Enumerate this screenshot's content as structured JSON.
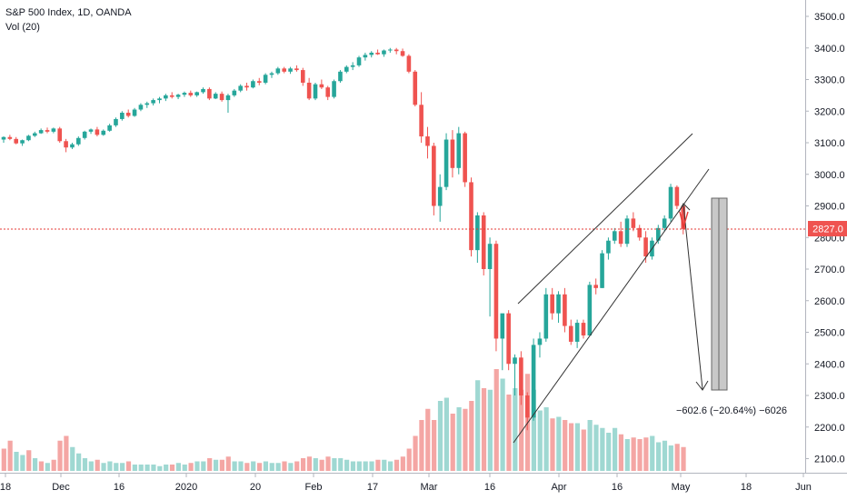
{
  "legend": {
    "title": "S&P 500 Index, 1D, OANDA",
    "volume": "Vol (20)"
  },
  "colors": {
    "up": "#26a69a",
    "down": "#ef5350",
    "vol_up": "#9fd8d2",
    "vol_down": "#f4a6a4",
    "price_line": "#e53935",
    "drawing": "#333333",
    "range_fill": "#c8c8c8"
  },
  "chart_data": {
    "type": "candlestick",
    "y_axis": {
      "min": 2100,
      "max": 3500,
      "ticks": [
        "3500.0",
        "3400.0",
        "3300.0",
        "3200.0",
        "3100.0",
        "3000.0",
        "2900.0",
        "2800.0",
        "2700.0",
        "2600.0",
        "2500.0",
        "2400.0",
        "2300.0",
        "2200.0",
        "2100.0"
      ]
    },
    "x_axis": {
      "ticks": [
        "18",
        "Dec",
        "16",
        "2020",
        "20",
        "Feb",
        "17",
        "Mar",
        "16",
        "Apr",
        "16",
        "May",
        "18",
        "Jun"
      ]
    },
    "last_price": "2827.0",
    "measure_label": "−602.6 (−20.64%) −6026",
    "candles": [
      [
        3110,
        3120,
        3100,
        3118
      ],
      [
        3118,
        3125,
        3108,
        3112
      ],
      [
        3112,
        3118,
        3095,
        3098
      ],
      [
        3098,
        3110,
        3090,
        3108
      ],
      [
        3108,
        3125,
        3105,
        3122
      ],
      [
        3122,
        3135,
        3118,
        3130
      ],
      [
        3130,
        3145,
        3128,
        3140
      ],
      [
        3140,
        3148,
        3130,
        3135
      ],
      [
        3135,
        3148,
        3130,
        3145
      ],
      [
        3145,
        3150,
        3100,
        3105
      ],
      [
        3105,
        3112,
        3070,
        3085
      ],
      [
        3085,
        3100,
        3080,
        3095
      ],
      [
        3095,
        3120,
        3090,
        3115
      ],
      [
        3115,
        3138,
        3110,
        3135
      ],
      [
        3135,
        3145,
        3128,
        3142
      ],
      [
        3142,
        3150,
        3120,
        3125
      ],
      [
        3125,
        3142,
        3122,
        3138
      ],
      [
        3138,
        3160,
        3135,
        3155
      ],
      [
        3155,
        3180,
        3150,
        3175
      ],
      [
        3175,
        3200,
        3170,
        3195
      ],
      [
        3195,
        3205,
        3180,
        3185
      ],
      [
        3185,
        3210,
        3182,
        3205
      ],
      [
        3205,
        3225,
        3200,
        3220
      ],
      [
        3220,
        3230,
        3210,
        3225
      ],
      [
        3225,
        3240,
        3218,
        3235
      ],
      [
        3235,
        3245,
        3225,
        3240
      ],
      [
        3240,
        3255,
        3232,
        3250
      ],
      [
        3250,
        3260,
        3240,
        3245
      ],
      [
        3245,
        3255,
        3238,
        3252
      ],
      [
        3252,
        3262,
        3245,
        3258
      ],
      [
        3258,
        3265,
        3245,
        3250
      ],
      [
        3250,
        3262,
        3245,
        3260
      ],
      [
        3260,
        3275,
        3255,
        3270
      ],
      [
        3270,
        3275,
        3235,
        3240
      ],
      [
        3240,
        3260,
        3238,
        3255
      ],
      [
        3255,
        3262,
        3230,
        3235
      ],
      [
        3235,
        3255,
        3195,
        3250
      ],
      [
        3250,
        3270,
        3245,
        3265
      ],
      [
        3265,
        3285,
        3260,
        3280
      ],
      [
        3280,
        3290,
        3265,
        3275
      ],
      [
        3275,
        3300,
        3272,
        3295
      ],
      [
        3295,
        3305,
        3282,
        3290
      ],
      [
        3290,
        3320,
        3285,
        3315
      ],
      [
        3315,
        3325,
        3305,
        3320
      ],
      [
        3320,
        3340,
        3315,
        3335
      ],
      [
        3335,
        3340,
        3320,
        3325
      ],
      [
        3325,
        3340,
        3318,
        3335
      ],
      [
        3335,
        3345,
        3325,
        3330
      ],
      [
        3330,
        3337,
        3280,
        3290
      ],
      [
        3290,
        3305,
        3235,
        3240
      ],
      [
        3240,
        3290,
        3235,
        3285
      ],
      [
        3285,
        3300,
        3270,
        3275
      ],
      [
        3275,
        3280,
        3235,
        3245
      ],
      [
        3245,
        3300,
        3240,
        3295
      ],
      [
        3295,
        3330,
        3290,
        3325
      ],
      [
        3325,
        3345,
        3320,
        3340
      ],
      [
        3340,
        3355,
        3330,
        3345
      ],
      [
        3345,
        3375,
        3340,
        3370
      ],
      [
        3370,
        3385,
        3360,
        3378
      ],
      [
        3378,
        3390,
        3370,
        3385
      ],
      [
        3385,
        3395,
        3378,
        3380
      ],
      [
        3380,
        3395,
        3372,
        3392
      ],
      [
        3392,
        3400,
        3385,
        3395
      ],
      [
        3395,
        3400,
        3380,
        3390
      ],
      [
        3390,
        3398,
        3372,
        3375
      ],
      [
        3375,
        3380,
        3320,
        3325
      ],
      [
        3325,
        3330,
        3215,
        3220
      ],
      [
        3220,
        3260,
        3100,
        3120
      ],
      [
        3120,
        3150,
        3050,
        3090
      ],
      [
        3090,
        3100,
        2870,
        2900
      ],
      [
        2900,
        3000,
        2850,
        2960
      ],
      [
        2960,
        3130,
        2950,
        3110
      ],
      [
        3110,
        3140,
        2990,
        3020
      ],
      [
        3020,
        3150,
        3000,
        3130
      ],
      [
        3130,
        3135,
        2960,
        2975
      ],
      [
        2975,
        2990,
        2740,
        2760
      ],
      [
        2760,
        2880,
        2720,
        2870
      ],
      [
        2870,
        2880,
        2680,
        2700
      ],
      [
        2700,
        2800,
        2550,
        2780
      ],
      [
        2780,
        2790,
        2440,
        2480
      ],
      [
        2480,
        2550,
        2380,
        2560
      ],
      [
        2560,
        2570,
        2380,
        2400
      ],
      [
        2400,
        2430,
        2300,
        2420
      ],
      [
        2420,
        2440,
        2270,
        2300
      ],
      [
        2300,
        2310,
        2190,
        2230
      ],
      [
        2230,
        2480,
        2220,
        2460
      ],
      [
        2460,
        2500,
        2420,
        2480
      ],
      [
        2480,
        2640,
        2470,
        2620
      ],
      [
        2620,
        2640,
        2540,
        2560
      ],
      [
        2560,
        2630,
        2530,
        2620
      ],
      [
        2620,
        2640,
        2500,
        2520
      ],
      [
        2520,
        2540,
        2460,
        2470
      ],
      [
        2470,
        2540,
        2450,
        2530
      ],
      [
        2530,
        2540,
        2480,
        2490
      ],
      [
        2490,
        2660,
        2490,
        2650
      ],
      [
        2650,
        2670,
        2620,
        2640
      ],
      [
        2640,
        2760,
        2640,
        2750
      ],
      [
        2750,
        2800,
        2730,
        2790
      ],
      [
        2790,
        2830,
        2780,
        2820
      ],
      [
        2820,
        2850,
        2770,
        2780
      ],
      [
        2780,
        2870,
        2770,
        2860
      ],
      [
        2860,
        2880,
        2820,
        2830
      ],
      [
        2830,
        2840,
        2790,
        2800
      ],
      [
        2800,
        2820,
        2720,
        2740
      ],
      [
        2740,
        2800,
        2730,
        2790
      ],
      [
        2790,
        2840,
        2780,
        2830
      ],
      [
        2830,
        2870,
        2820,
        2860
      ],
      [
        2860,
        2970,
        2850,
        2960
      ],
      [
        2960,
        2965,
        2890,
        2900
      ],
      [
        2900,
        2905,
        2810,
        2827
      ]
    ],
    "volumes": [
      [
        1.4,
        0
      ],
      [
        1.9,
        0
      ],
      [
        1.2,
        1
      ],
      [
        1.0,
        1
      ],
      [
        1.3,
        0
      ],
      [
        0.8,
        1
      ],
      [
        0.6,
        0
      ],
      [
        0.5,
        1
      ],
      [
        0.7,
        0
      ],
      [
        1.9,
        0
      ],
      [
        2.2,
        0
      ],
      [
        1.5,
        1
      ],
      [
        1.1,
        1
      ],
      [
        0.8,
        1
      ],
      [
        0.6,
        1
      ],
      [
        0.7,
        0
      ],
      [
        0.5,
        1
      ],
      [
        0.6,
        1
      ],
      [
        0.5,
        1
      ],
      [
        0.5,
        1
      ],
      [
        0.6,
        0
      ],
      [
        0.4,
        1
      ],
      [
        0.4,
        1
      ],
      [
        0.4,
        1
      ],
      [
        0.4,
        1
      ],
      [
        0.3,
        1
      ],
      [
        0.4,
        1
      ],
      [
        0.4,
        0
      ],
      [
        0.5,
        1
      ],
      [
        0.4,
        1
      ],
      [
        0.5,
        0
      ],
      [
        0.6,
        1
      ],
      [
        0.6,
        1
      ],
      [
        0.8,
        0
      ],
      [
        0.7,
        1
      ],
      [
        0.7,
        0
      ],
      [
        0.9,
        0
      ],
      [
        0.6,
        1
      ],
      [
        0.6,
        1
      ],
      [
        0.5,
        0
      ],
      [
        0.6,
        1
      ],
      [
        0.5,
        0
      ],
      [
        0.6,
        1
      ],
      [
        0.5,
        1
      ],
      [
        0.5,
        1
      ],
      [
        0.6,
        0
      ],
      [
        0.5,
        1
      ],
      [
        0.6,
        0
      ],
      [
        0.8,
        0
      ],
      [
        0.9,
        0
      ],
      [
        0.8,
        1
      ],
      [
        0.7,
        0
      ],
      [
        0.9,
        0
      ],
      [
        0.8,
        1
      ],
      [
        0.8,
        1
      ],
      [
        0.7,
        1
      ],
      [
        0.6,
        1
      ],
      [
        0.6,
        1
      ],
      [
        0.6,
        1
      ],
      [
        0.6,
        1
      ],
      [
        0.7,
        0
      ],
      [
        0.7,
        1
      ],
      [
        0.6,
        1
      ],
      [
        0.7,
        0
      ],
      [
        0.9,
        0
      ],
      [
        1.4,
        0
      ],
      [
        2.2,
        0
      ],
      [
        3.2,
        0
      ],
      [
        3.9,
        0
      ],
      [
        3.2,
        0
      ],
      [
        4.4,
        1
      ],
      [
        4.6,
        1
      ],
      [
        3.6,
        0
      ],
      [
        4.0,
        1
      ],
      [
        3.9,
        0
      ],
      [
        4.4,
        0
      ],
      [
        5.7,
        1
      ],
      [
        5.2,
        0
      ],
      [
        5.1,
        1
      ],
      [
        6.4,
        0
      ],
      [
        5.8,
        1
      ],
      [
        4.8,
        0
      ],
      [
        5.2,
        1
      ],
      [
        5.1,
        0
      ],
      [
        6.1,
        0
      ],
      [
        5.1,
        1
      ],
      [
        3.8,
        1
      ],
      [
        4.0,
        1
      ],
      [
        3.3,
        0
      ],
      [
        3.4,
        1
      ],
      [
        3.2,
        0
      ],
      [
        3.0,
        0
      ],
      [
        3.0,
        1
      ],
      [
        2.6,
        0
      ],
      [
        3.2,
        1
      ],
      [
        2.9,
        1
      ],
      [
        2.7,
        1
      ],
      [
        2.4,
        1
      ],
      [
        2.7,
        1
      ],
      [
        2.3,
        0
      ],
      [
        2.0,
        1
      ],
      [
        2.1,
        0
      ],
      [
        2.0,
        0
      ],
      [
        2.1,
        0
      ],
      [
        2.2,
        1
      ],
      [
        1.8,
        1
      ],
      [
        1.9,
        1
      ],
      [
        1.6,
        1
      ],
      [
        1.7,
        0
      ],
      [
        1.5,
        0
      ]
    ]
  }
}
